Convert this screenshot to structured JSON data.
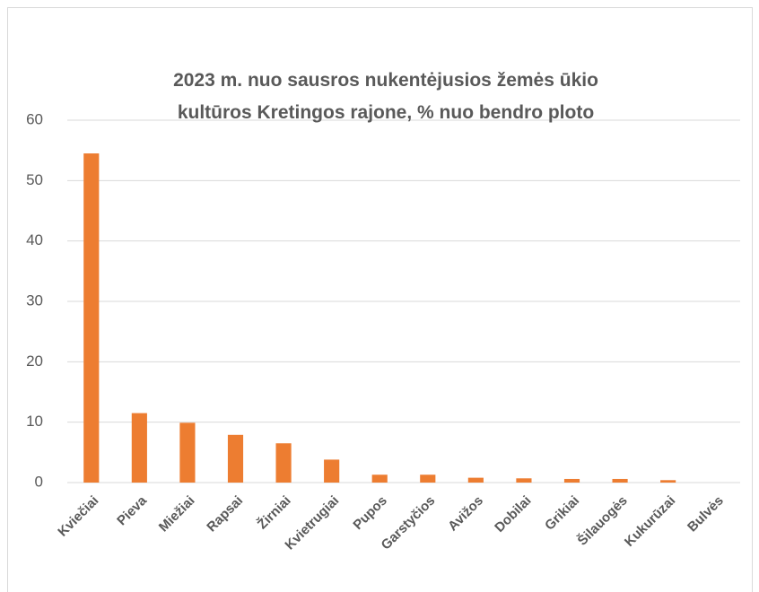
{
  "chart_data": {
    "type": "bar",
    "title": "2023 m. nuo sausros nukentėjusios žemės ūkio kultūros Kretingos rajone, % nuo bendro ploto",
    "categories": [
      "Kviečiai",
      "Pieva",
      "Miežiai",
      "Rapsai",
      "Žirniai",
      "Kvietrugiai",
      "Pupos",
      "Garstyčios",
      "Avižos",
      "Dobilai",
      "Grikiai",
      "Šilauogės",
      "Kukurūzai",
      "Bulvės"
    ],
    "values": [
      54.5,
      11.5,
      9.9,
      7.9,
      6.5,
      3.8,
      1.3,
      1.3,
      0.8,
      0.7,
      0.6,
      0.6,
      0.4,
      0
    ],
    "color": "#ed7d31",
    "ylim": [
      0,
      60
    ],
    "yticks": [
      0,
      10,
      20,
      30,
      40,
      50,
      60
    ],
    "grid": true
  }
}
